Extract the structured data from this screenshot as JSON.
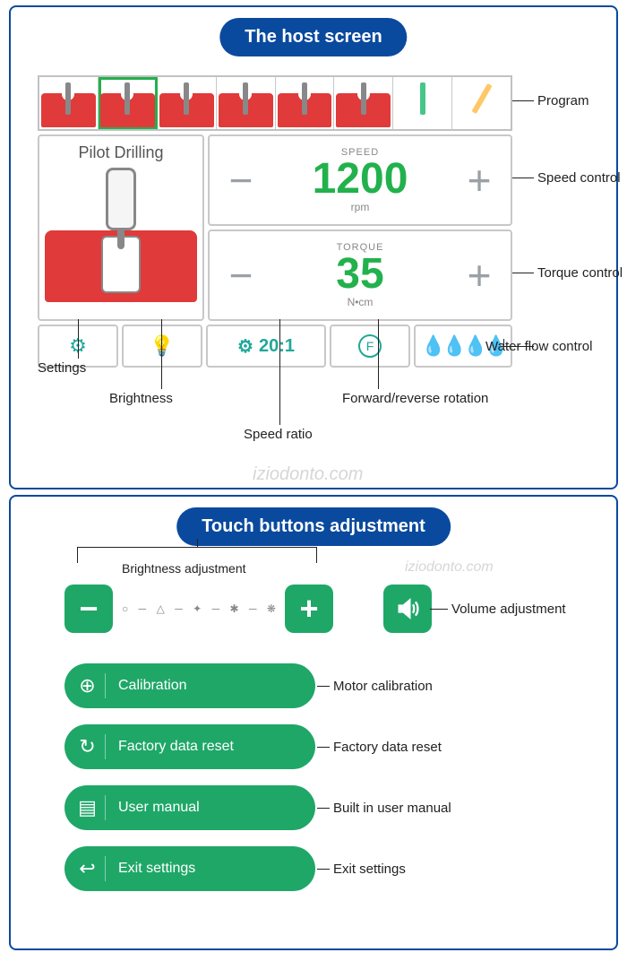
{
  "titles": {
    "top": "The host screen",
    "bottom": "Touch buttons adjustment"
  },
  "colors": {
    "primary_blue": "#0a4a9e",
    "green": "#1fa768",
    "bright_green": "#22b14c",
    "teal": "#1fa899",
    "red": "#e03a3a",
    "gray_border": "#c8c8c8",
    "gray_text": "#888"
  },
  "host_screen": {
    "program_name": "Pilot Drilling",
    "program_count": 8,
    "program_selected_index": 1,
    "speed": {
      "label": "SPEED",
      "value": "1200",
      "unit": "rpm"
    },
    "torque": {
      "label": "TORQUE",
      "value": "35",
      "unit": "N•cm"
    },
    "ratio": "20:1",
    "callouts": {
      "program": "Program",
      "speed": "Speed control",
      "torque": "Torque control",
      "water": "Water flow control",
      "dir": "Forward/reverse rotation",
      "ratio": "Speed ratio",
      "brightness": "Brightness",
      "settings": "Settings"
    }
  },
  "touch": {
    "brightness_label": "Brightness adjustment",
    "volume_label": "Volume adjustment",
    "menu": [
      {
        "label": "Calibration",
        "desc": "Motor calibration",
        "icon": "⊕"
      },
      {
        "label": "Factory data reset",
        "desc": "Factory data reset",
        "icon": "↻"
      },
      {
        "label": "User manual",
        "desc": "Built in user manual",
        "icon": "▤"
      },
      {
        "label": "Exit settings",
        "desc": "Exit settings",
        "icon": "↩"
      }
    ]
  },
  "watermark": "iziodonto.com"
}
